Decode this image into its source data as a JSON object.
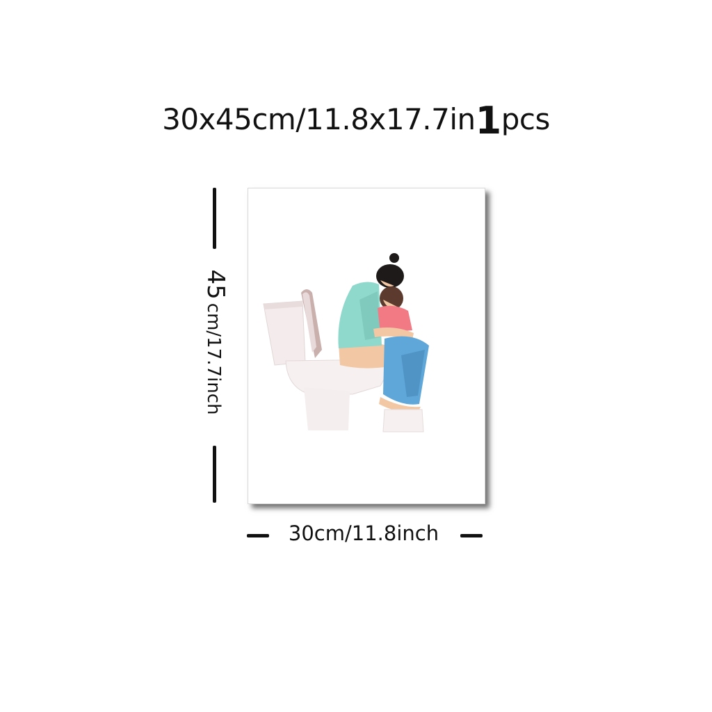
{
  "title": {
    "size_text": "30x45cm/11.8x17.7in",
    "quantity": "1",
    "unit": "pcs"
  },
  "height_label": {
    "value": "45",
    "rest": "cm/17.7inch"
  },
  "width_label": "30cm/11.8inch",
  "colors": {
    "shirt": "#8fd8cc",
    "child_shirt": "#f27a84",
    "pants": "#5fa7d8",
    "skin": "#f2c7a4",
    "hair": "#1e1a1a",
    "toilet": "#f4ecec",
    "toilet_shade": "#c9b0ad"
  }
}
